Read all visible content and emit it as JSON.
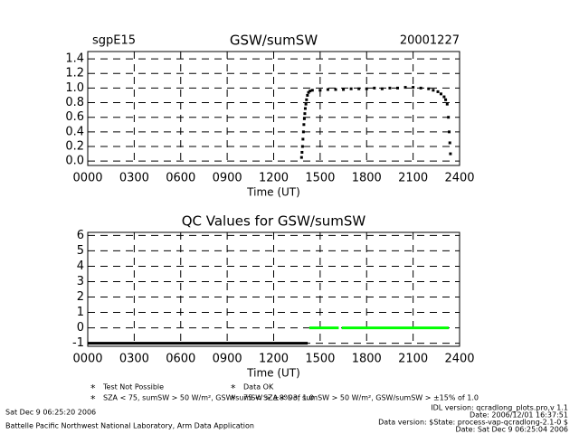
{
  "chart_data": [
    {
      "type": "scatter",
      "title": "GSW/sumSW",
      "site": "sgpE15",
      "date": "20001227",
      "x_label": "Time (UT)",
      "xlim": [
        0,
        2400
      ],
      "xticks": [
        {
          "value": 0,
          "label": "0000"
        },
        {
          "value": 300,
          "label": "0300"
        },
        {
          "value": 600,
          "label": "0600"
        },
        {
          "value": 900,
          "label": "0900"
        },
        1200,
        1500,
        1800,
        2100,
        2400
      ],
      "ylim": [
        -0.06,
        1.5
      ],
      "yticks": [
        {
          "value": 0,
          "label": "0.0"
        },
        0.2,
        0.4,
        0.6,
        0.8,
        {
          "value": 1,
          "label": "1.0"
        },
        1.2,
        1.4
      ],
      "grid": true,
      "color": "#000000",
      "x": [
        1380,
        1383,
        1386,
        1389,
        1392,
        1395,
        1398,
        1401,
        1404,
        1408,
        1412,
        1418,
        1425,
        1435,
        1450,
        1500,
        1550,
        1600,
        1650,
        1700,
        1750,
        1800,
        1850,
        1900,
        1950,
        2000,
        2050,
        2100,
        2150,
        2200,
        2230,
        2260,
        2280,
        2300,
        2310,
        2320,
        2328,
        2333,
        2337,
        2341
      ],
      "values": [
        0.05,
        0.12,
        0.2,
        0.3,
        0.4,
        0.5,
        0.58,
        0.65,
        0.72,
        0.78,
        0.84,
        0.9,
        0.94,
        0.96,
        0.97,
        0.97,
        0.98,
        0.98,
        0.98,
        0.99,
        0.99,
        0.99,
        1.0,
        0.99,
        1.0,
        1.0,
        1.01,
        1.01,
        1.0,
        0.99,
        0.97,
        0.95,
        0.92,
        0.88,
        0.84,
        0.78,
        0.6,
        0.4,
        0.25,
        0.1
      ]
    },
    {
      "type": "line",
      "title": "QC Values for GSW/sumSW",
      "x_label": "Time (UT)",
      "xlim": [
        0,
        2400
      ],
      "xticks": [
        {
          "value": 0,
          "label": "0000"
        },
        {
          "value": 300,
          "label": "0300"
        },
        {
          "value": 600,
          "label": "0600"
        },
        {
          "value": 900,
          "label": "0900"
        },
        1200,
        1500,
        1800,
        2100,
        2400
      ],
      "ylim": [
        -1.2,
        6.2
      ],
      "yticks": [
        -1,
        0,
        1,
        2,
        3,
        4,
        5,
        6
      ],
      "grid": true,
      "series": [
        {
          "name": "Test Not Possible",
          "color": "#000000",
          "x": [
            0,
            1420
          ],
          "values": [
            -1,
            -1
          ]
        },
        {
          "name": "SZA < 75, sumSW > 50 W/m², GSW/sumSW > ±8% of 1.0",
          "color": "#ffa500",
          "x": [],
          "values": []
        },
        {
          "name": "Data OK",
          "color": "#00ff00",
          "x": [
            1430,
            1620,
            1630,
            1640,
            2330
          ],
          "values": [
            0,
            0,
            null,
            0,
            0
          ]
        },
        {
          "name": "75 < SZA < 93, sumSW > 50 W/m², GSW/sumSW > ±15% of 1.0",
          "color": "#ff0000",
          "x": [],
          "values": []
        }
      ]
    }
  ],
  "footer": {
    "run_date": "Sat Dec  9 06:25:20 2006",
    "org": "Battelle Pacific Northwest National Laboratory, Arm Data Application",
    "idl_version": "IDL version: qcradlong_plots.pro,v 1.1",
    "idl_date": "Date: 2006/12/01 16:37:51",
    "data_version": "Data version: $State: process-vap-qcradlong-2.1-0 $",
    "data_date": "Date: Sat Dec  9 06:25:04 2006"
  }
}
